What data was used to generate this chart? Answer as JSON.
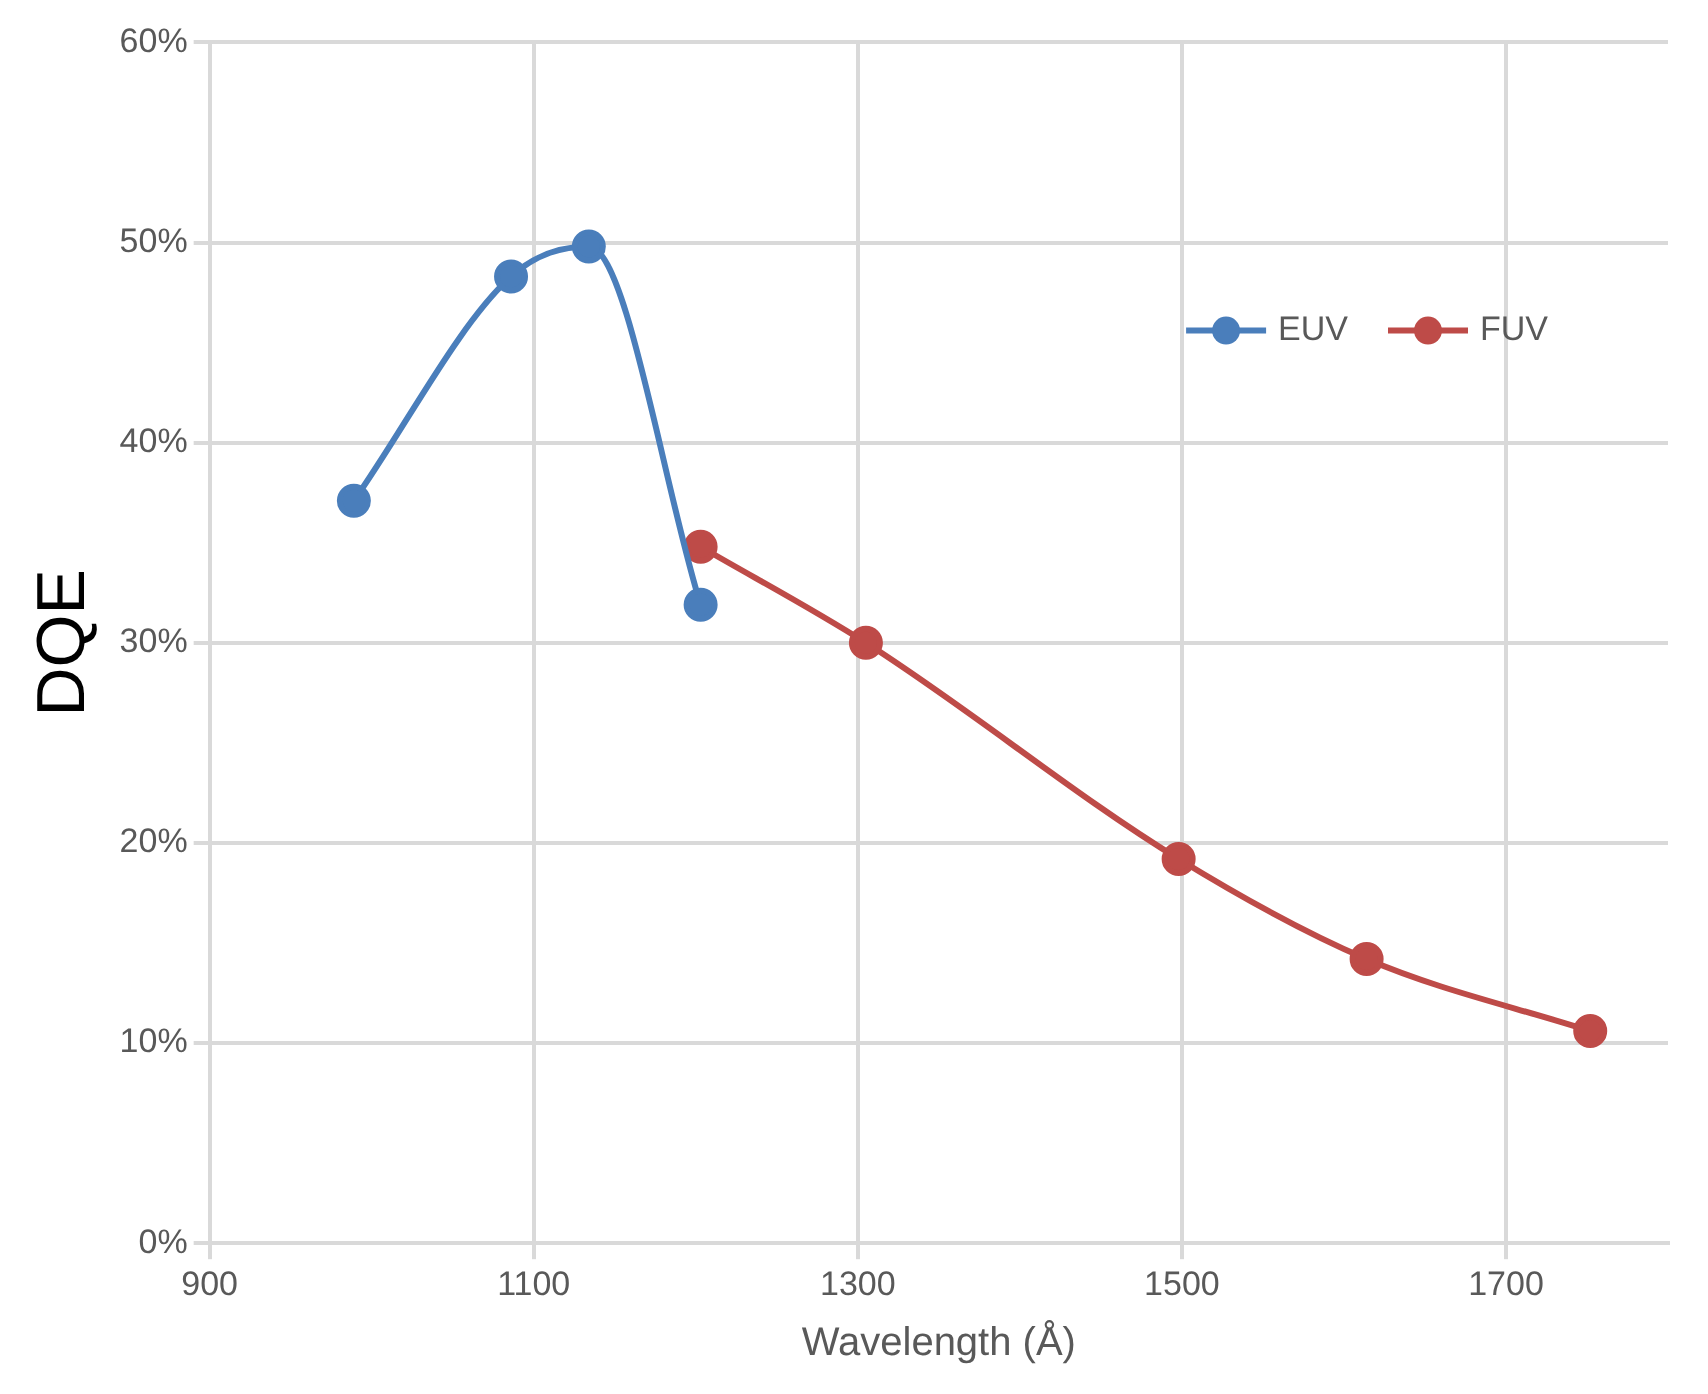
{
  "chart_data": {
    "type": "line",
    "xlabel": "Wavelength (Å)",
    "ylabel": "DQE",
    "xlim": [
      900,
      1800
    ],
    "xticks": [
      900,
      1100,
      1300,
      1500,
      1700
    ],
    "ylim": [
      0,
      60
    ],
    "yticks": [
      {
        "value": 0,
        "label": "0%"
      },
      {
        "value": 10,
        "label": "10%"
      },
      {
        "value": 20,
        "label": "20%"
      },
      {
        "value": 30,
        "label": "30%"
      },
      {
        "value": 40,
        "label": "40%"
      },
      {
        "value": 50,
        "label": "50%"
      },
      {
        "value": 60,
        "label": "60%"
      }
    ],
    "series": [
      {
        "name": "EUV",
        "color": "#4a7ebb",
        "x": [
          989,
          1086,
          1134,
          1203
        ],
        "values": [
          37.1,
          48.3,
          49.8,
          31.9
        ]
      },
      {
        "name": "FUV",
        "color": "#be4b48",
        "x": [
          1203,
          1305,
          1498,
          1614,
          1752
        ],
        "values": [
          34.8,
          30.0,
          19.2,
          14.2,
          10.6
        ]
      }
    ],
    "grid": true,
    "legend": "top right",
    "marker": "circle",
    "line_style": "solid"
  }
}
